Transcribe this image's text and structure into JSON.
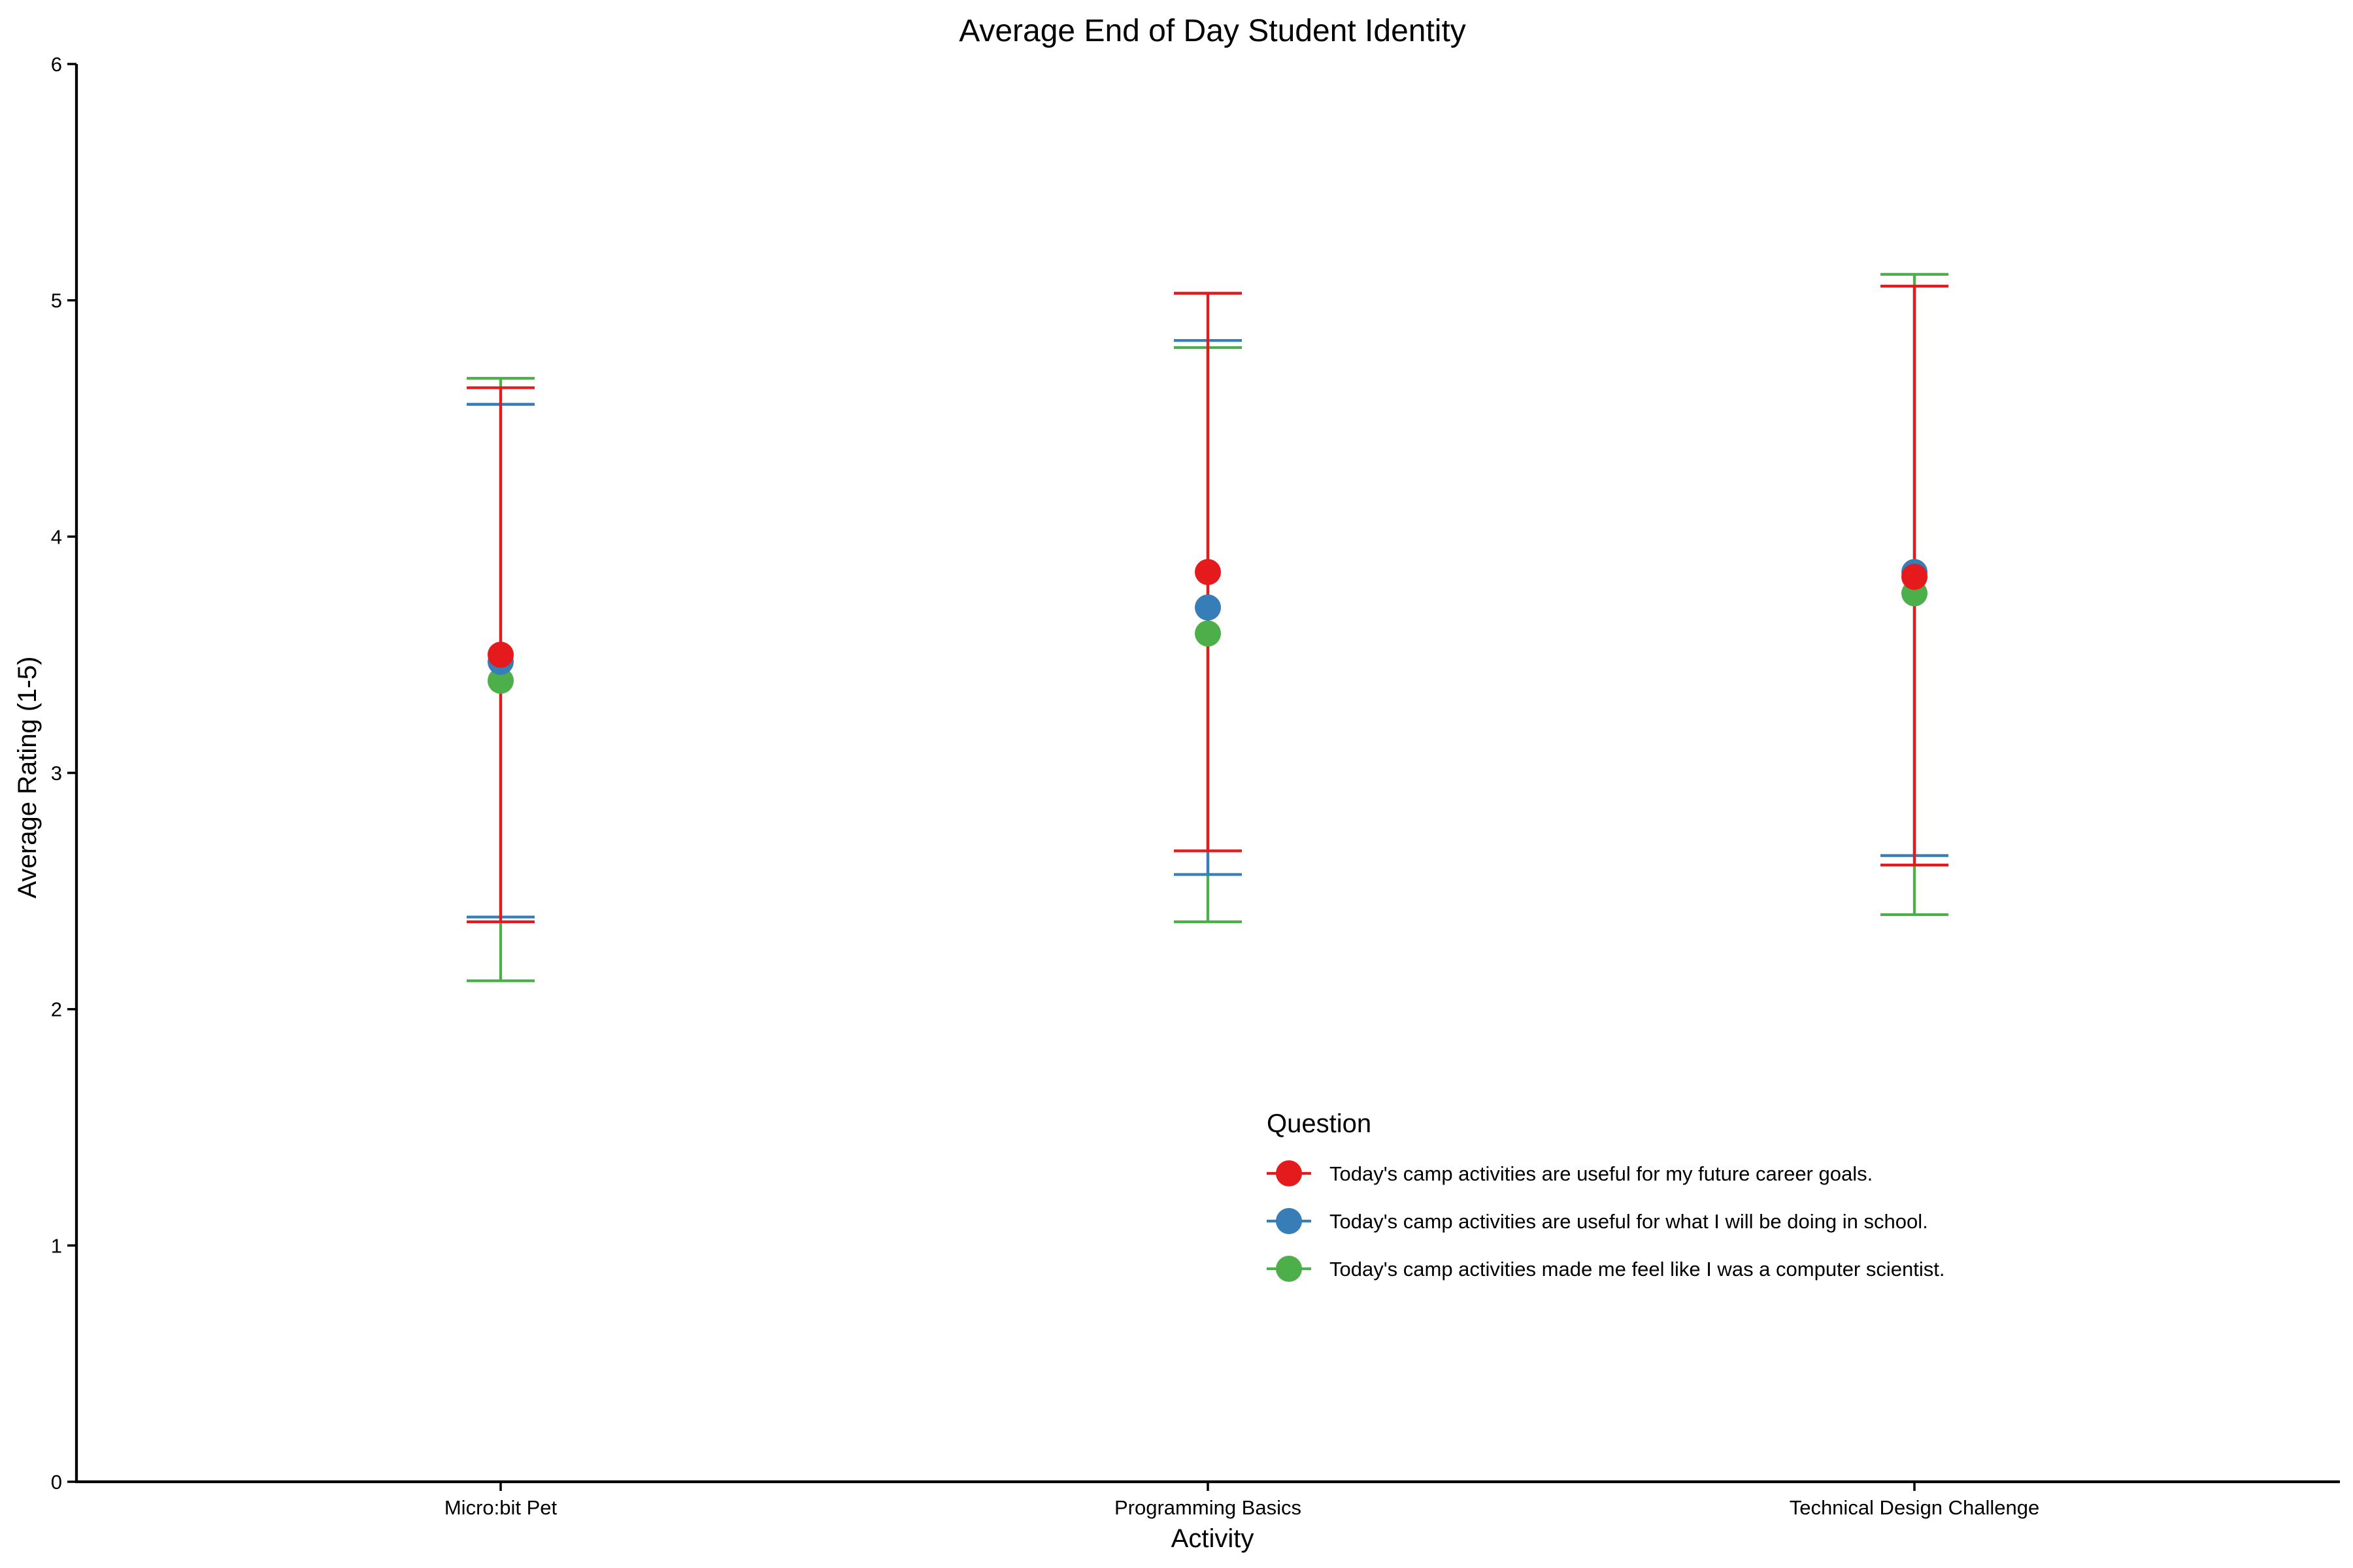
{
  "chart_data": {
    "type": "scatter",
    "title": "Average End of Day Student Identity",
    "xlabel": "Activity",
    "ylabel": "Average Rating (1-5)",
    "ylim": [
      0,
      6
    ],
    "yticks": [
      0,
      1,
      2,
      3,
      4,
      5,
      6
    ],
    "categories": [
      "Micro:bit Pet",
      "Programming Basics",
      "Technical Design Challenge"
    ],
    "legend": {
      "title": "Question",
      "placement": "inside-bottom-right"
    },
    "grid": false,
    "series": [
      {
        "name": "Today's camp activities are useful for my future career goals.",
        "color": "#E41A1C",
        "mean": [
          3.5,
          3.85,
          3.83
        ],
        "lower": [
          2.37,
          2.67,
          2.61
        ],
        "upper": [
          4.63,
          5.03,
          5.06
        ]
      },
      {
        "name": "Today's camp activities are useful for what I will be doing in school.",
        "color": "#377EB8",
        "mean": [
          3.47,
          3.7,
          3.85
        ],
        "lower": [
          2.39,
          2.57,
          2.65
        ],
        "upper": [
          4.56,
          4.83,
          5.06
        ]
      },
      {
        "name": "Today's camp activities made me feel like I was a computer scientist.",
        "color": "#4DAF4A",
        "mean": [
          3.39,
          3.59,
          3.76
        ],
        "lower": [
          2.12,
          2.37,
          2.4
        ],
        "upper": [
          4.67,
          4.8,
          5.11
        ]
      }
    ]
  }
}
